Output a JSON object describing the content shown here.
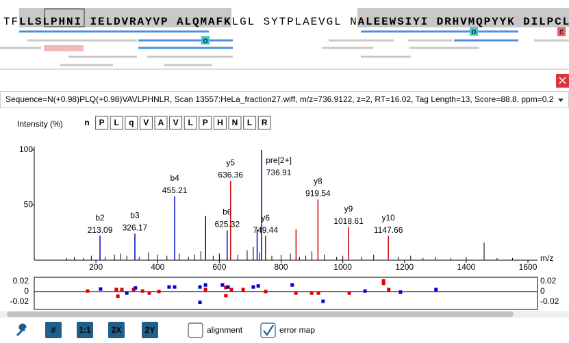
{
  "coverage": {
    "segments": [
      "TF",
      "LLSLPHNI IELDVRAYVP ALQMAFK",
      "LGL SYTPLAEVGL N",
      "ALEEWSIYI DRHVMQPYYK DILPCL"
    ],
    "marks": [
      "o",
      "o",
      "c"
    ]
  },
  "selector": "Sequence=N(+0.98)PLQ(+0.98)VAVLPHNLR, Scan 13557:HeLa_fraction27.wiff, m/z=736.9122, z=2, RT=16.02, Tag Length=13, Score=88.8, ppm=0.2",
  "peptide": [
    "n",
    "P",
    "L",
    "q",
    "V",
    "A",
    "V",
    "L",
    "P",
    "H",
    "N",
    "L",
    "R"
  ],
  "chart_data": [
    {
      "type": "bar",
      "y_label": "Intensity (%)",
      "x_label": "m/z",
      "xlim": [
        0,
        1631
      ],
      "ylim": [
        0,
        100
      ],
      "xticks": [
        200,
        400,
        600,
        800,
        1000,
        1200,
        1400,
        1600
      ],
      "yticks": [
        50,
        100
      ],
      "series": [
        {
          "color": "#0000cc",
          "x": [
            213.09,
            326.17,
            455.21,
            555.3,
            625.32,
            722.4,
            736.91
          ],
          "values": [
            22,
            24,
            58,
            40,
            27,
            28,
            100
          ],
          "ions": [
            "b2",
            "b3",
            "b4",
            null,
            "b6",
            null,
            "pre[2+]"
          ]
        },
        {
          "color": "#cc0000",
          "x": [
            636.36,
            749.44,
            848.5,
            919.54,
            1018.61,
            1147.66
          ],
          "values": [
            72,
            22,
            28,
            55,
            30,
            22
          ],
          "ions": [
            "y5",
            "y6",
            null,
            "y8",
            "y9",
            "y10"
          ]
        },
        {
          "color": "#000000",
          "x": [
            105,
            130,
            160,
            185,
            230,
            260,
            280,
            300,
            340,
            370,
            400,
            430,
            470,
            500,
            520,
            540,
            580,
            600,
            660,
            690,
            710,
            730,
            770,
            800,
            830,
            860,
            880,
            900,
            940,
            980,
            1000,
            1060,
            1100,
            1180,
            1220,
            1260,
            1300,
            1350,
            1400,
            1458,
            1500,
            1550
          ],
          "values": [
            2,
            3,
            2,
            4,
            3,
            5,
            6,
            4,
            3,
            7,
            5,
            4,
            6,
            3,
            5,
            8,
            4,
            6,
            5,
            9,
            12,
            7,
            4,
            5,
            6,
            3,
            4,
            8,
            5,
            3,
            4,
            3,
            5,
            3,
            4,
            2,
            3,
            2,
            3,
            16,
            2,
            2
          ]
        }
      ]
    },
    {
      "type": "scatter",
      "xlim": [
        0,
        1631
      ],
      "ylim": [
        -0.035,
        0.028
      ],
      "yticks": [
        0.02,
        0,
        -0.02
      ],
      "series": [
        {
          "color": "#e00000",
          "x": [
            173,
            266,
            271,
            284,
            322,
            351,
            373,
            404,
            555,
            621,
            621,
            639,
            677,
            750,
            848,
            899,
            921,
            1021,
            1132,
            1132,
            1149
          ],
          "values": [
            0.001,
            0.004,
            -0.009,
            0.004,
            0.004,
            0.001,
            -0.003,
            0,
            0.004,
            0.008,
            -0.008,
            0.004,
            0.004,
            0,
            -0.003,
            -0.003,
            -0.003,
            -0.003,
            0.021,
            0.016,
            0.004
          ]
        },
        {
          "color": "#0000e0",
          "x": [
            215,
            300,
            328,
            437,
            455,
            537,
            537,
            555,
            610,
            628,
            710,
            726,
            836,
            936,
            1072,
            1187,
            1302
          ],
          "values": [
            0.005,
            -0.003,
            0.007,
            0.009,
            0.009,
            0.009,
            -0.021,
            0.013,
            0.013,
            0.009,
            0.009,
            0.011,
            0.013,
            -0.019,
            0.001,
            -0.001,
            0.004
          ]
        }
      ]
    }
  ],
  "toolbar": {
    "buttons": [
      "#",
      "1:1",
      "2X",
      "2Y"
    ],
    "checkboxes": [
      {
        "label": "alignment",
        "checked": false
      },
      {
        "label": "error map",
        "checked": true
      }
    ]
  }
}
